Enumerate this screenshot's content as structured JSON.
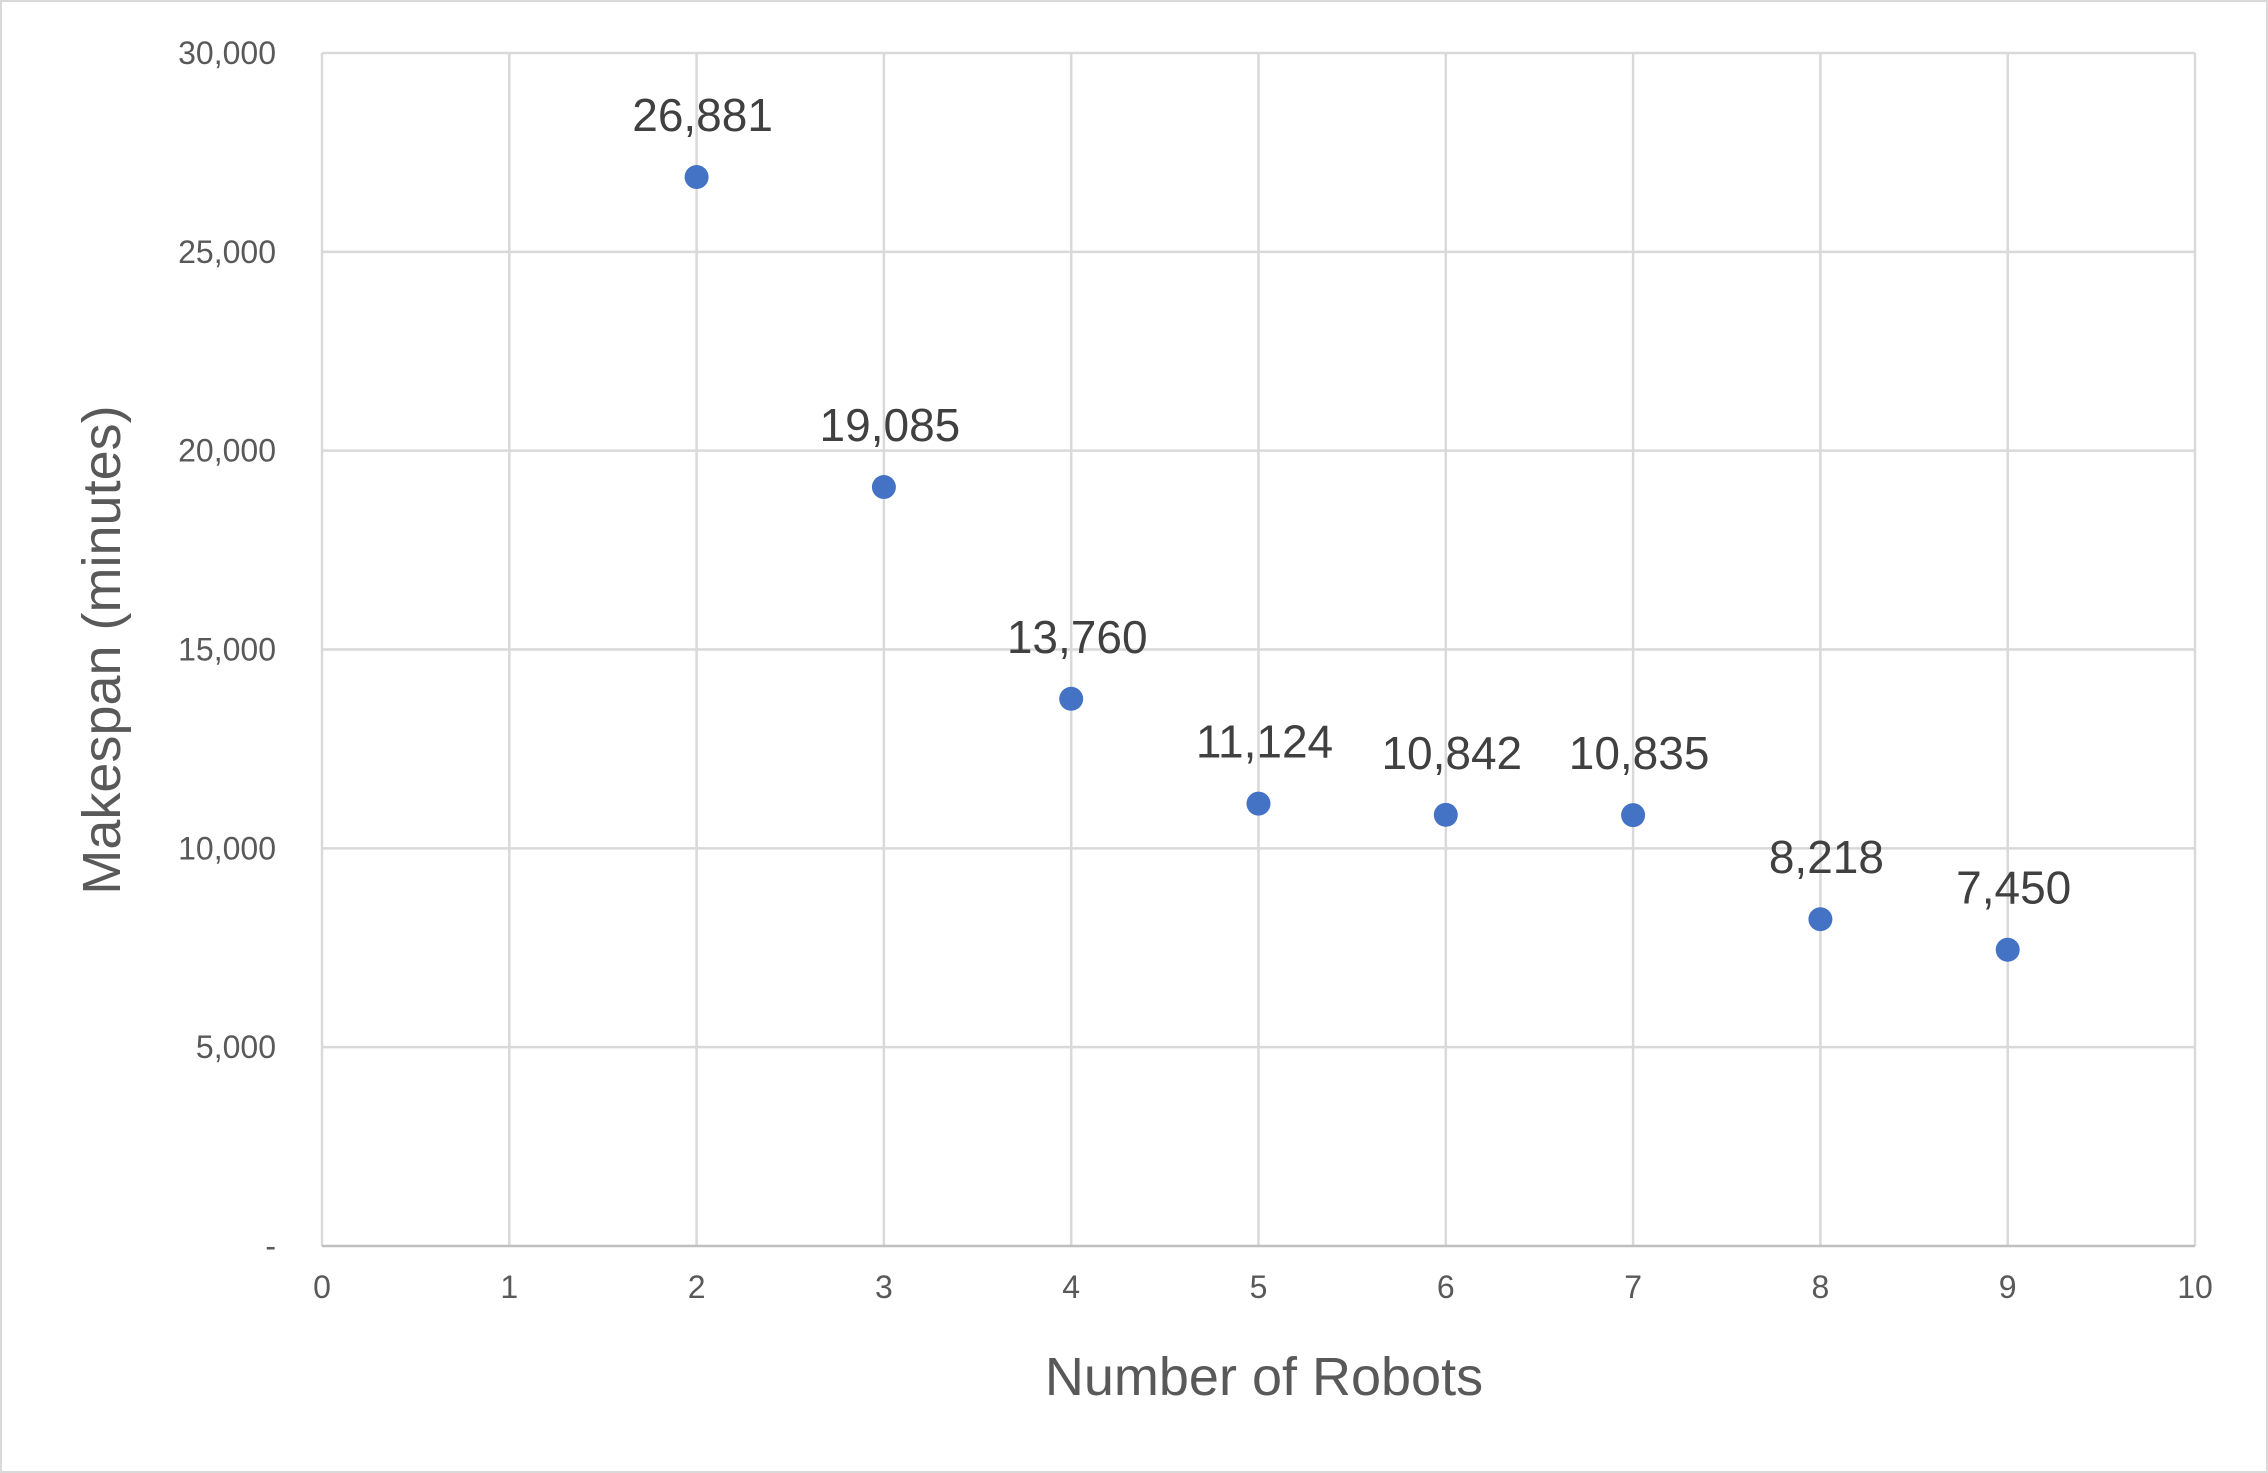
{
  "chart_data": {
    "type": "scatter",
    "title": "",
    "xlabel": "Number of Robots",
    "ylabel": "Makespan (minutes)",
    "xlim": [
      0,
      10
    ],
    "ylim": [
      0,
      30000
    ],
    "x_ticks": [
      "0",
      "1",
      "2",
      "3",
      "4",
      "5",
      "6",
      "7",
      "8",
      "9",
      "10"
    ],
    "y_ticks": [
      "-",
      "5,000",
      "10,000",
      "15,000",
      "20,000",
      "25,000",
      "30,000"
    ],
    "grid": true,
    "legend": "none",
    "marker_color": "#4472c4",
    "series": [
      {
        "x": [
          2,
          3,
          4,
          5,
          6,
          7,
          8,
          9
        ],
        "y": [
          26881,
          19085,
          13760,
          11124,
          10842,
          10835,
          8218,
          7450
        ],
        "labels": [
          "26,881",
          "19,085",
          "13,760",
          "11,124",
          "10,842",
          "10,835",
          "8,218",
          "7,450"
        ]
      }
    ]
  }
}
